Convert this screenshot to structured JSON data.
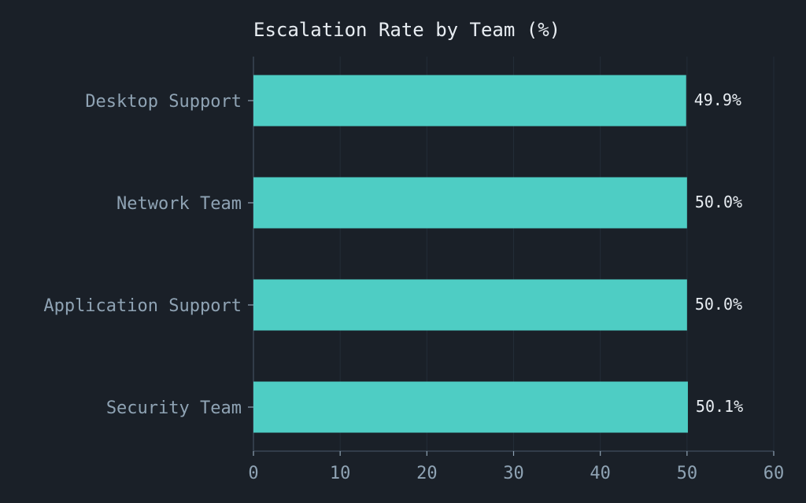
{
  "colors": {
    "background": "#1a2028",
    "bar": "#4ecdc4",
    "axis": "#3a4654",
    "grid": "#232d38",
    "label": "#8fa3b4",
    "text": "#e8edf2"
  },
  "chart_data": {
    "type": "bar",
    "orientation": "horizontal",
    "title": "Escalation Rate by Team (%)",
    "xlabel": "",
    "ylabel": "",
    "categories": [
      "Desktop Support",
      "Network Team",
      "Application Support",
      "Security Team"
    ],
    "values": [
      49.9,
      50.0,
      50.0,
      50.1
    ],
    "value_labels": [
      "49.9%",
      "50.0%",
      "50.0%",
      "50.1%"
    ],
    "xlim": [
      0,
      60
    ],
    "xticks": [
      0,
      10,
      20,
      30,
      40,
      50,
      60
    ],
    "xtick_labels": [
      "0",
      "10",
      "20",
      "30",
      "40",
      "50",
      "60"
    ],
    "grid": "vertical",
    "legend": "none"
  }
}
